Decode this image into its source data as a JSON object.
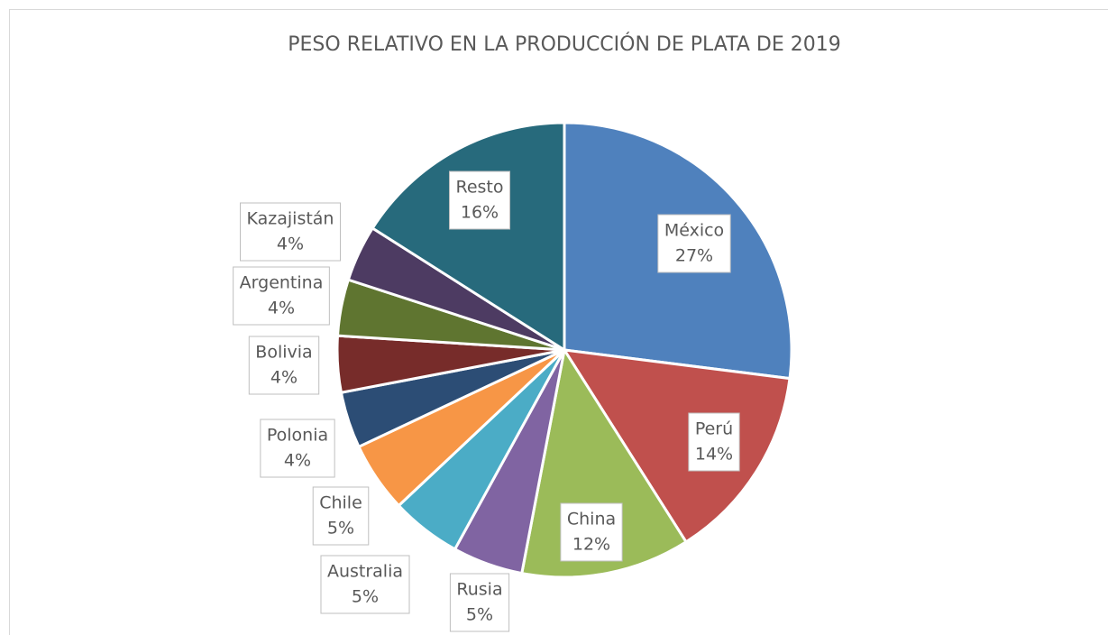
{
  "chart_data": {
    "type": "pie",
    "title": "PESO RELATIVO EN LA PRODUCCIÓN DE PLATA DE 2019",
    "categories": [
      "México",
      "Perú",
      "China",
      "Rusia",
      "Australia",
      "Chile",
      "Polonia",
      "Bolivia",
      "Argentina",
      "Kazajistán",
      "Resto"
    ],
    "values": [
      27,
      14,
      12,
      5,
      5,
      5,
      4,
      4,
      4,
      4,
      16
    ],
    "value_labels": [
      "27%",
      "14%",
      "12%",
      "5%",
      "5%",
      "5%",
      "4%",
      "4%",
      "4%",
      "4%",
      "16%"
    ],
    "colors": [
      "#4f81bd",
      "#c0504d",
      "#9bbb59",
      "#8064a2",
      "#4bacc6",
      "#f79646",
      "#2c4d75",
      "#772c2a",
      "#5f7530",
      "#4d3b62",
      "#276a7c"
    ]
  }
}
